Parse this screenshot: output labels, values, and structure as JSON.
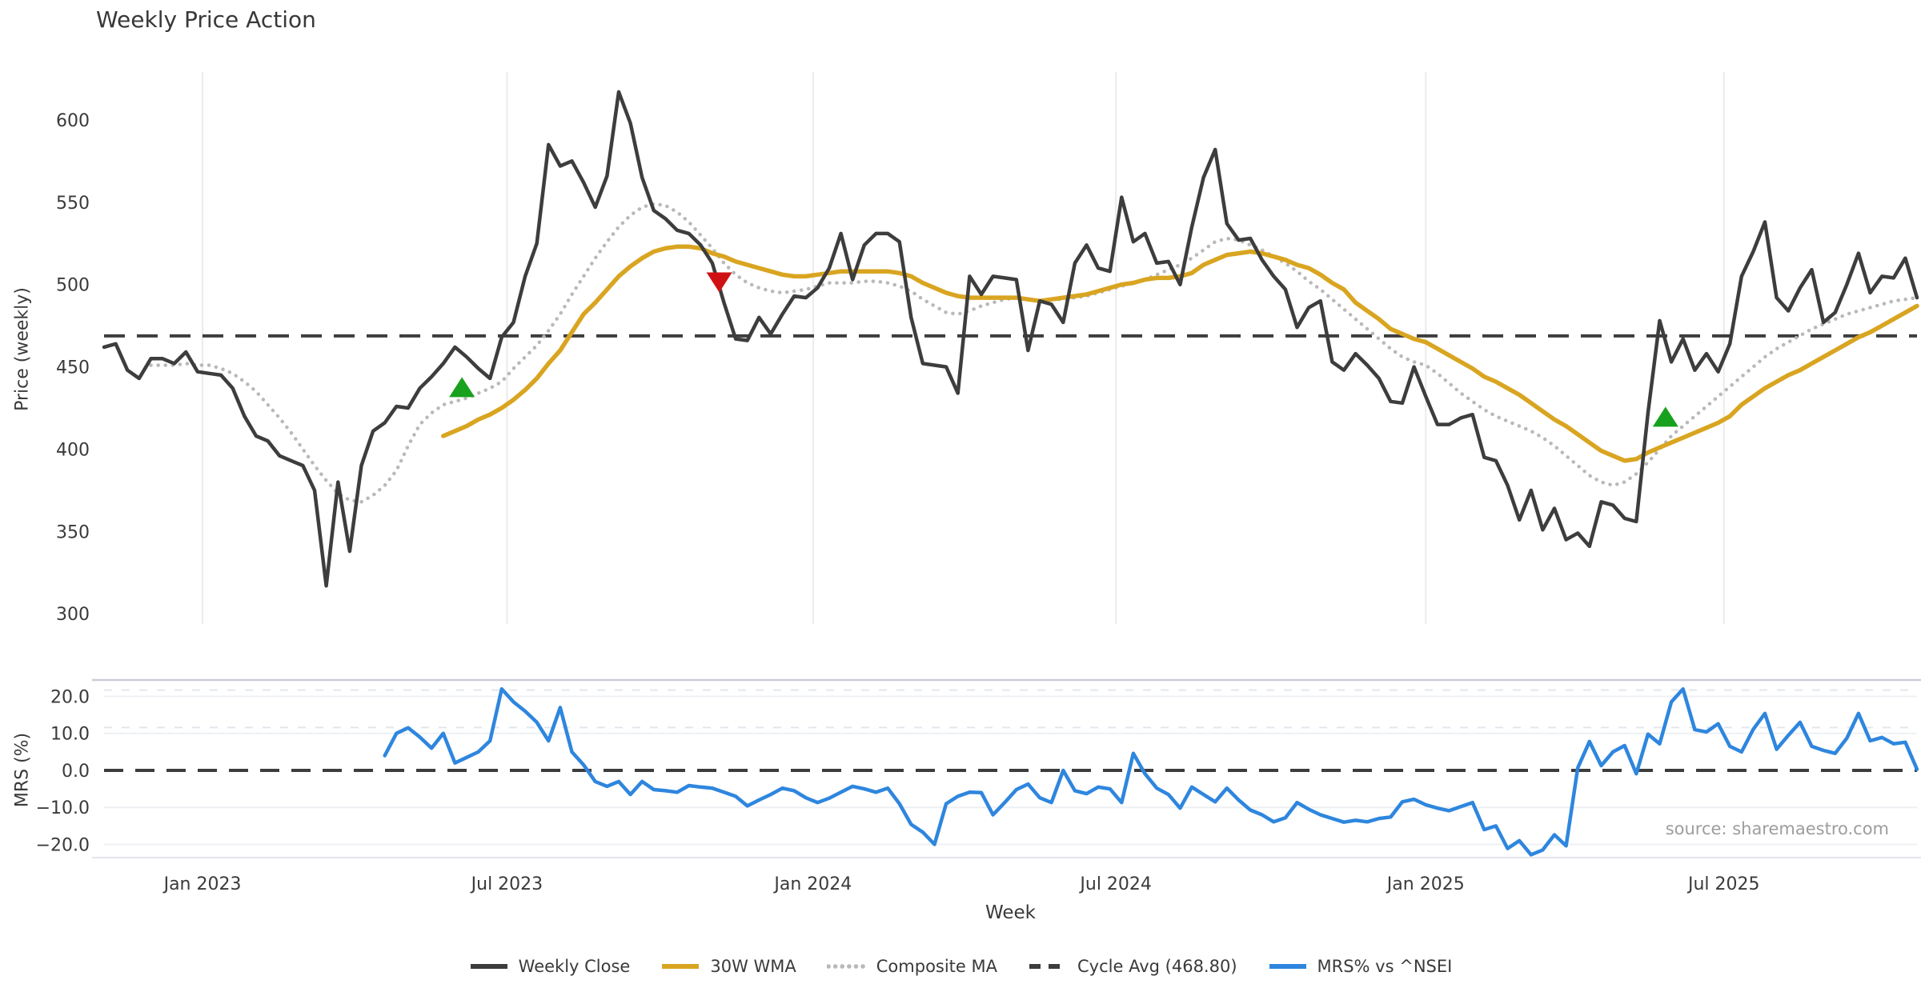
{
  "title": "Weekly Price Action",
  "source": "source: sharemaestro.com",
  "legend": {
    "items": [
      {
        "label": "Weekly Close",
        "color": "#3d3d3d",
        "style": "solid"
      },
      {
        "label": "30W WMA",
        "color": "#d9a521",
        "style": "solid"
      },
      {
        "label": "Composite MA",
        "color": "#b9b9b9",
        "style": "dotted"
      },
      {
        "label": "Cycle Avg (468.80)",
        "color": "#3d3d3d",
        "style": "dashed"
      },
      {
        "label": "MRS% vs ^NSEI",
        "color": "#2e86de",
        "style": "solid"
      }
    ]
  },
  "chart_data": {
    "type": "line",
    "title": "Weekly Price Action",
    "x": {
      "label": "Week",
      "count": 156,
      "ticks": [
        {
          "i": 8.42,
          "label": "Jan 2023"
        },
        {
          "i": 34.45,
          "label": "Jul 2023"
        },
        {
          "i": 60.62,
          "label": "Jan 2024"
        },
        {
          "i": 86.51,
          "label": "Jul 2024"
        },
        {
          "i": 113.0,
          "label": "Jan 2025"
        },
        {
          "i": 138.49,
          "label": "Jul 2025"
        }
      ]
    },
    "panels": [
      {
        "name": "price",
        "ylabel": "Price (weekly)",
        "ylim": [
          293.8,
          629.1
        ],
        "grid": "vertical",
        "yticks": [
          {
            "v": 600,
            "label": "600"
          },
          {
            "v": 550,
            "label": "550"
          },
          {
            "v": 500,
            "label": "500"
          },
          {
            "v": 450,
            "label": "450"
          },
          {
            "v": 400,
            "label": "400"
          },
          {
            "v": 350,
            "label": "350"
          },
          {
            "v": 300,
            "label": "300"
          }
        ],
        "cycle_avg": 468.8,
        "markers": [
          {
            "shape": "triangle-up",
            "color": "#18a11e",
            "i": 30.6,
            "value": 437
          },
          {
            "shape": "triangle-down",
            "color": "#cf1113",
            "i": 52.6,
            "value": 502
          },
          {
            "shape": "triangle-up",
            "color": "#18a11e",
            "i": 133.5,
            "value": 419
          }
        ],
        "series": [
          {
            "name": "Composite MA",
            "color": "#b9b9b9",
            "width": 4.5,
            "style": "dotted",
            "values": [
              null,
              null,
              null,
              null,
              451,
              451,
              451,
              452,
              451,
              451,
              449,
              446,
              441,
              435,
              427,
              419,
              410,
              400,
              390,
              381,
              373,
              369,
              368,
              372,
              378,
              387,
              402,
              415,
              422,
              427,
              429,
              431,
              434,
              437,
              441,
              449,
              456,
              463,
              472,
              482,
              494,
              505,
              516,
              526,
              535,
              542,
              547,
              549,
              548,
              544,
              538,
              530,
              522,
              513,
              506,
              501,
              498,
              496,
              495,
              496,
              497,
              499,
              501,
              501,
              501,
              502,
              502,
              501,
              499,
              496,
              491,
              487,
              483,
              482,
              484,
              487,
              489,
              491,
              492,
              491,
              490,
              491,
              491,
              492,
              493,
              495,
              497,
              499,
              501,
              503,
              506,
              509,
              512,
              516,
              521,
              526,
              528,
              527,
              524,
              521,
              517,
              513,
              508,
              502,
              497,
              491,
              485,
              479,
              473,
              467,
              461,
              456,
              453,
              451,
              446,
              440,
              434,
              429,
              424,
              420,
              417,
              414,
              411,
              407,
              402,
              396,
              390,
              384,
              380,
              378,
              380,
              385,
              392,
              400,
              408,
              414,
              420,
              426,
              432,
              438,
              444,
              450,
              456,
              461,
              465,
              469,
              473,
              476,
              479,
              482,
              484,
              486,
              488,
              490,
              491,
              492
            ]
          },
          {
            "name": "30W WMA",
            "color": "#d9a521",
            "width": 5.5,
            "style": "solid",
            "values": [
              null,
              null,
              null,
              null,
              null,
              null,
              null,
              null,
              null,
              null,
              null,
              null,
              null,
              null,
              null,
              null,
              null,
              null,
              null,
              null,
              null,
              null,
              null,
              null,
              null,
              null,
              null,
              null,
              null,
              408,
              411,
              414,
              418,
              421,
              425,
              430,
              436,
              443,
              452,
              460,
              471,
              482,
              489,
              497,
              505,
              511,
              516,
              520,
              522,
              523,
              523,
              522,
              519,
              517,
              514,
              512,
              510,
              508,
              506,
              505,
              505,
              506,
              507,
              508,
              508,
              508,
              508,
              508,
              507,
              505,
              501,
              498,
              495,
              493,
              492,
              492,
              492,
              492,
              492,
              491,
              490,
              491,
              492,
              493,
              494,
              496,
              498,
              500,
              501,
              503,
              504,
              504,
              505,
              507,
              512,
              515,
              518,
              519,
              520,
              519,
              517,
              515,
              512,
              510,
              506,
              501,
              497,
              489,
              484,
              479,
              473,
              470,
              467,
              465,
              461,
              457,
              453,
              449,
              444,
              441,
              437,
              433,
              428,
              423,
              418,
              414,
              409,
              404,
              399,
              396,
              393,
              394,
              398,
              401,
              404,
              407,
              410,
              413,
              416,
              420,
              427,
              432,
              437,
              441,
              445,
              448,
              452,
              456,
              460,
              464,
              468,
              471,
              475,
              479,
              483,
              487
            ]
          },
          {
            "name": "Weekly Close",
            "color": "#3d3d3d",
            "width": 4.5,
            "style": "solid",
            "values": [
              462,
              464,
              448,
              443,
              455,
              455,
              452,
              459,
              447,
              446,
              445,
              437,
              420,
              408,
              405,
              396,
              393,
              390,
              375,
              317,
              380,
              338,
              390,
              411,
              416,
              426,
              425,
              437,
              444,
              452,
              462,
              456,
              449,
              443,
              468,
              477,
              505,
              525,
              585,
              572,
              575,
              562,
              547,
              566,
              617,
              598,
              565,
              545,
              540,
              533,
              531,
              524,
              513,
              489,
              467,
              466,
              480,
              470,
              482,
              493,
              492,
              498,
              510,
              531,
              503,
              524,
              531,
              531,
              526,
              480,
              452,
              451,
              450,
              434,
              505,
              494,
              505,
              504,
              503,
              460,
              490,
              488,
              477,
              513,
              524,
              510,
              508,
              553,
              526,
              531,
              513,
              514,
              500,
              535,
              565,
              582,
              537,
              527,
              528,
              515,
              505,
              497,
              474,
              486,
              490,
              453,
              448,
              458,
              451,
              443,
              429,
              428,
              450,
              432,
              415,
              415,
              419,
              421,
              395,
              393,
              378,
              357,
              375,
              351,
              364,
              345,
              349,
              341,
              368,
              366,
              358,
              356,
              422,
              478,
              453,
              467,
              448,
              458,
              447,
              464,
              505,
              520,
              538,
              492,
              484,
              498,
              509,
              477,
              483,
              500,
              519,
              495,
              505,
              504,
              516,
              492
            ]
          }
        ]
      },
      {
        "name": "mrs",
        "ylabel": "MRS (%)",
        "ylim": [
          -23.57,
          24.43
        ],
        "grid": "horizontal",
        "yticks": [
          {
            "v": 20,
            "label": "20.0"
          },
          {
            "v": 10,
            "label": "10.0"
          },
          {
            "v": 0,
            "label": "0.0"
          },
          {
            "v": -10,
            "label": "−10.0"
          },
          {
            "v": -20,
            "label": "−20.0"
          }
        ],
        "zero_dashed": 0,
        "faint_dotted": [
          21.7,
          11.6
        ],
        "series": [
          {
            "name": "MRS% vs ^NSEI",
            "color": "#2e86de",
            "width": 4.5,
            "style": "solid",
            "values": [
              null,
              null,
              null,
              null,
              null,
              null,
              null,
              null,
              null,
              null,
              null,
              null,
              null,
              null,
              null,
              null,
              null,
              null,
              null,
              null,
              null,
              null,
              null,
              null,
              4,
              10,
              11.5,
              9,
              6,
              10,
              2,
              3.5,
              5,
              8,
              22,
              18.5,
              16,
              13,
              8,
              17,
              5,
              1.5,
              -3,
              -4.3,
              -3,
              -6.5,
              -3,
              -5.2,
              -5.5,
              -5.9,
              -4.1,
              -4.5,
              -4.8,
              -5.9,
              -7,
              -9.6,
              -8,
              -6.5,
              -4.8,
              -5.5,
              -7.4,
              -8.7,
              -7.5,
              -5.9,
              -4.3,
              -5,
              -5.9,
              -4.8,
              -9,
              -14.6,
              -16.7,
              -20,
              -9,
              -7,
              -5.9,
              -6,
              -12,
              -8.7,
              -5.2,
              -3.7,
              -7.4,
              -8.7,
              0,
              -5.5,
              -6.3,
              -4.5,
              -5,
              -8.7,
              4.6,
              -0.9,
              -4.8,
              -6.5,
              -10.2,
              -4.5,
              -6.5,
              -8.5,
              -4.8,
              -8,
              -10.7,
              -12,
              -13.9,
              -12.8,
              -8.7,
              -10.5,
              -12,
              -13,
              -14,
              -13.5,
              -13.9,
              -13,
              -12.6,
              -8.5,
              -7.8,
              -9.3,
              -10.2,
              -10.9,
              -9.8,
              -8.7,
              -16,
              -15,
              -21.1,
              -19,
              -22.8,
              -21.5,
              -17.4,
              -20.4,
              0.7,
              7.8,
              1.3,
              5,
              6.7,
              -0.9,
              9.8,
              7.2,
              18.5,
              22,
              11,
              10.4,
              12.6,
              6.5,
              5,
              11.1,
              15.4,
              5.7,
              9.5,
              13,
              6.5,
              5.4,
              4.6,
              8.7,
              15.4,
              8,
              8.9,
              7.2,
              7.6,
              0.3
            ]
          }
        ]
      }
    ]
  }
}
